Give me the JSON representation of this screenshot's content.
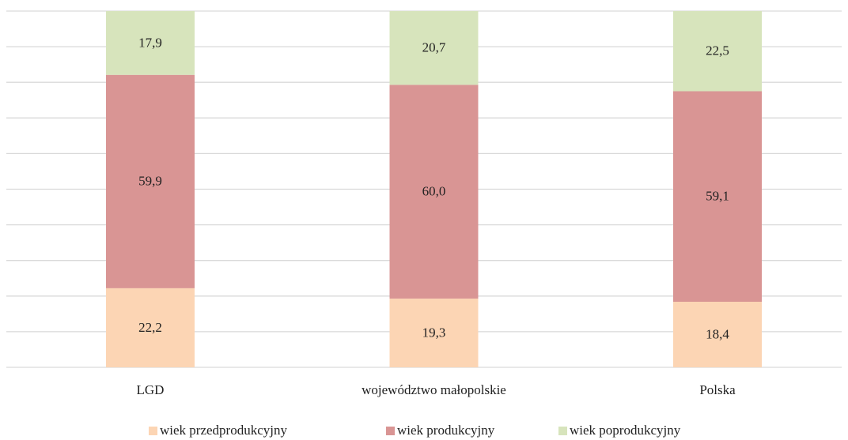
{
  "chart_data": {
    "type": "stacked_bar",
    "categories": [
      "LGD",
      "województwo małopolskie",
      "Polska"
    ],
    "series": [
      {
        "name": "wiek przedprodukcyjny",
        "color": "#fcd5b4",
        "values": [
          22.2,
          19.3,
          18.4
        ],
        "value_labels": [
          "22,2",
          "19,3",
          "18,4"
        ]
      },
      {
        "name": "wiek produkcyjny",
        "color": "#d99594",
        "values": [
          59.9,
          60.0,
          59.1
        ],
        "value_labels": [
          "59,9",
          "60,0",
          "59,1"
        ]
      },
      {
        "name": "wiek poprodukcyjny",
        "color": "#d7e4bc",
        "values": [
          17.9,
          20.7,
          22.5
        ],
        "value_labels": [
          "17,9",
          "20,7",
          "22,5"
        ]
      }
    ],
    "ylim": [
      0,
      100
    ],
    "yticks": [
      0,
      10,
      20,
      30,
      40,
      50,
      60,
      70,
      80,
      90,
      100
    ],
    "grid": true,
    "legend": "bottom"
  }
}
